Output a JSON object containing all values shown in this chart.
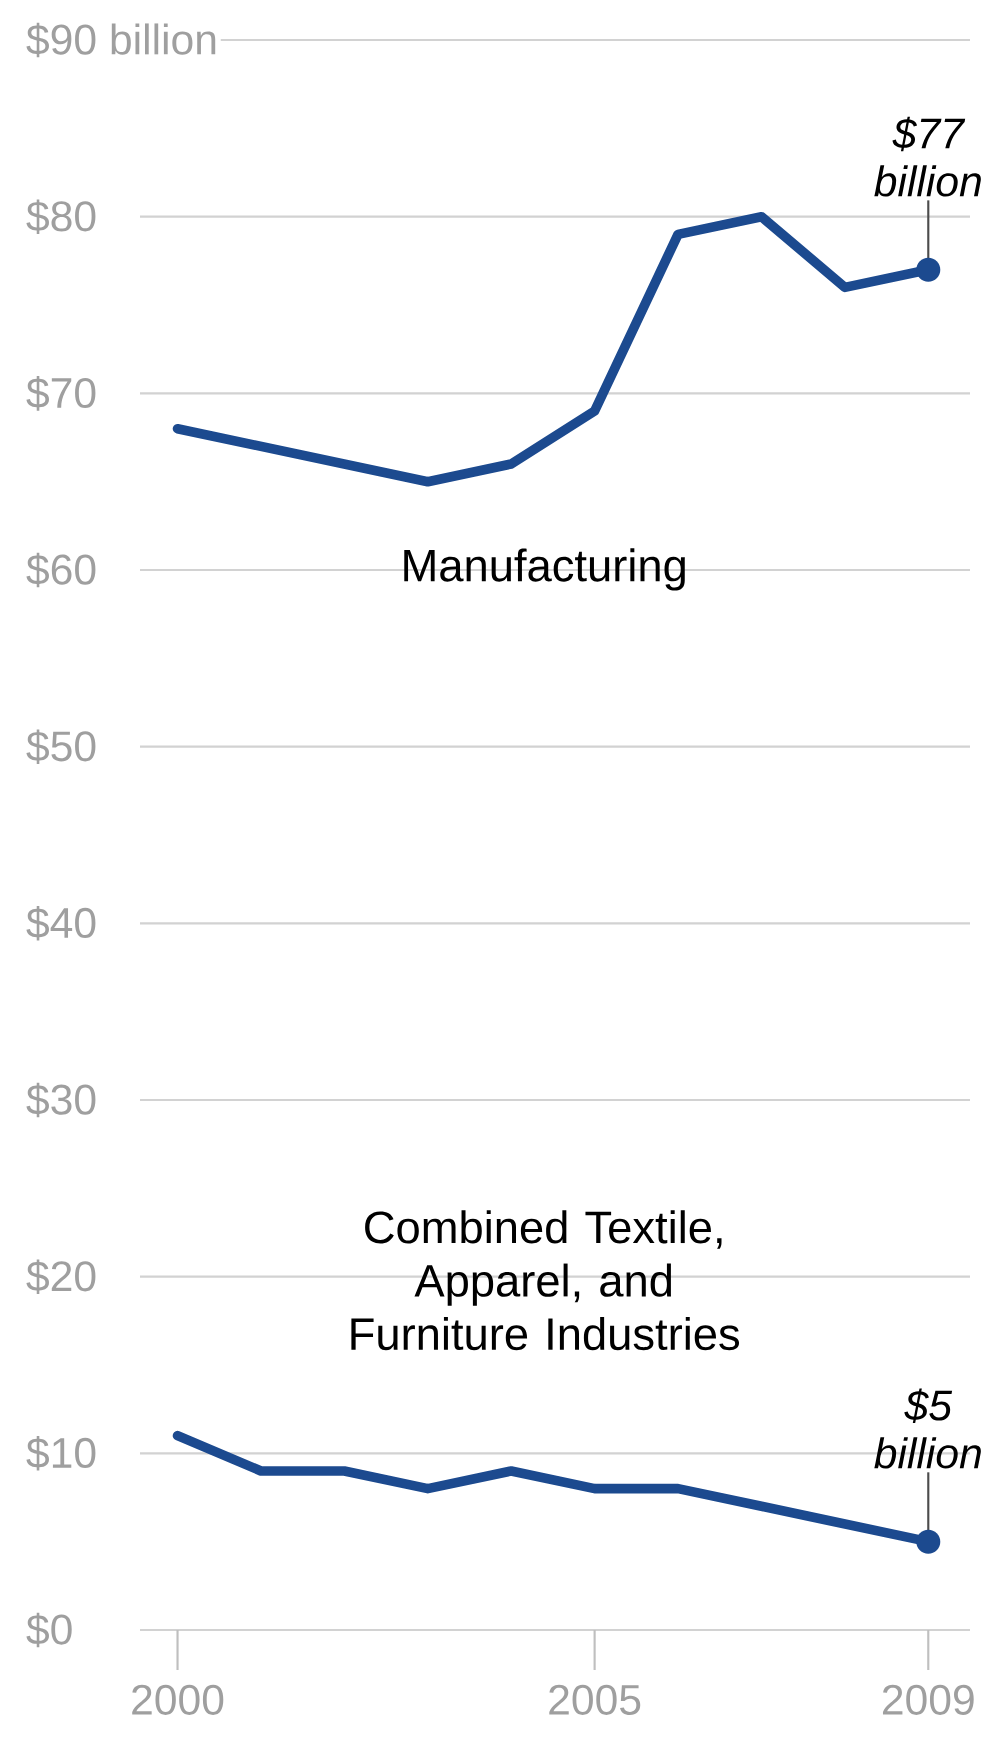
{
  "chart_data": {
    "type": "line",
    "series": [
      {
        "name": "Manufacturing",
        "color": "#1c4a8f",
        "x": [
          2000,
          2003,
          2004,
          2005,
          2006,
          2007,
          2008,
          2009
        ],
        "values": [
          68,
          65,
          66,
          69,
          79,
          80,
          76,
          77
        ]
      },
      {
        "name": "Combined Textile, Apparel, and Furniture Industries",
        "color": "#1c4a8f",
        "x": [
          2000,
          2001,
          2002,
          2003,
          2004,
          2005,
          2006,
          2007,
          2008,
          2009
        ],
        "values": [
          11,
          9,
          9,
          8,
          9,
          8,
          8,
          7,
          6,
          5
        ]
      }
    ],
    "xlim": [
      1999.55,
      2009.5
    ],
    "xticks": [
      2000,
      2005,
      2009
    ],
    "ylim": [
      0,
      90
    ],
    "yticks": [
      {
        "value": 0,
        "label": "$0"
      },
      {
        "value": 10,
        "label": "$10"
      },
      {
        "value": 20,
        "label": "$20"
      },
      {
        "value": 30,
        "label": "$30"
      },
      {
        "value": 40,
        "label": "$40"
      },
      {
        "value": 50,
        "label": "$50"
      },
      {
        "value": 60,
        "label": "$60"
      },
      {
        "value": 70,
        "label": "$70"
      },
      {
        "value": 80,
        "label": "$80"
      },
      {
        "value": 90,
        "label": "$90 billion"
      }
    ],
    "grid": "y",
    "marker": "none",
    "line_style": "solid",
    "annotations": [
      {
        "text": "$77 billion",
        "x": 2009,
        "y": 77
      },
      {
        "text": "$5 billion",
        "x": 2009,
        "y": 5
      }
    ]
  }
}
